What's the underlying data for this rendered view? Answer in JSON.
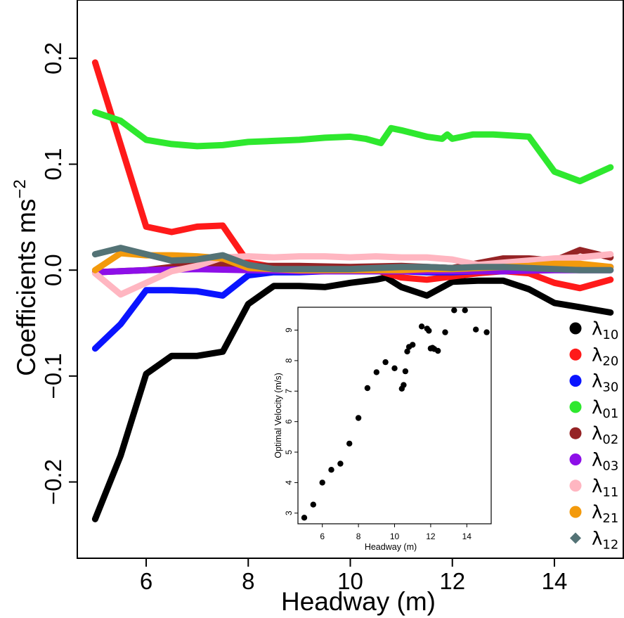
{
  "chart_data": [
    {
      "type": "line",
      "xlabel": "Headway (m)",
      "ylabel": "Coefficients ms",
      "ylabel_superscript": "−2",
      "xlim": [
        4.65,
        15.35
      ],
      "ylim": [
        -0.272,
        0.255
      ],
      "x_ticks": [
        6,
        8,
        10,
        12,
        14
      ],
      "y_ticks": [
        -0.2,
        -0.1,
        0.0,
        0.1,
        0.2
      ],
      "x_tick_labels": [
        "6",
        "8",
        "10",
        "12",
        "14"
      ],
      "y_tick_labels": [
        "−0.2",
        "−0.1",
        "0.0",
        "0.1",
        "0.2"
      ],
      "grid": false,
      "legend_position": "right",
      "series": [
        {
          "name": "λ",
          "sub": "10",
          "color": "#000000",
          "marker": "circle",
          "x": [
            5,
            5.5,
            6,
            6.5,
            7,
            7.5,
            8,
            8.5,
            9,
            9.5,
            10,
            10.5,
            10.7,
            11,
            11.5,
            12,
            12.5,
            13,
            13.5,
            14,
            14.5,
            15.1
          ],
          "y": [
            -0.235,
            -0.175,
            -0.098,
            -0.081,
            -0.081,
            -0.077,
            -0.032,
            -0.015,
            -0.015,
            -0.016,
            -0.012,
            -0.009,
            -0.007,
            -0.016,
            -0.024,
            -0.011,
            -0.01,
            -0.01,
            -0.018,
            -0.031,
            -0.035,
            -0.04
          ]
        },
        {
          "name": "λ",
          "sub": "20",
          "color": "#ff1a1a",
          "marker": "circle",
          "x": [
            5,
            6,
            6.5,
            7,
            7.5,
            8,
            8.5,
            9,
            9.5,
            10,
            10.5,
            11,
            11.5,
            12,
            12.5,
            13,
            13.5,
            14,
            14.5,
            15.1
          ],
          "y": [
            0.196,
            0.041,
            0.036,
            0.041,
            0.042,
            0.007,
            0.003,
            0.002,
            0.002,
            0.001,
            0.0,
            -0.007,
            -0.009,
            -0.006,
            -0.003,
            -0.001,
            -0.003,
            -0.012,
            -0.017,
            -0.009
          ]
        },
        {
          "name": "λ",
          "sub": "30",
          "color": "#0a14ff",
          "marker": "circle",
          "x": [
            5,
            5.5,
            6,
            6.5,
            7,
            7.5,
            8,
            8.5,
            9,
            9.5,
            10,
            10.5,
            11,
            11.5,
            12,
            12.5,
            13,
            13.5,
            14,
            14.5,
            15.1
          ],
          "y": [
            -0.074,
            -0.051,
            -0.019,
            -0.019,
            -0.02,
            -0.024,
            -0.005,
            -0.002,
            -0.002,
            -0.001,
            -0.001,
            -0.001,
            -0.001,
            -0.002,
            -0.002,
            -0.001,
            -0.001,
            0.0,
            0.001,
            0.002,
            0.003
          ]
        },
        {
          "name": "λ",
          "sub": "01",
          "color": "#2ee82e",
          "marker": "circle",
          "x": [
            5,
            5.5,
            6,
            6.5,
            7,
            7.5,
            8,
            8.5,
            9,
            9.5,
            10,
            10.3,
            10.6,
            10.8,
            11.0,
            11.5,
            11.8,
            11.9,
            12.0,
            12.2,
            12.4,
            12.8,
            13.5,
            14.0,
            14.5,
            15.1
          ],
          "y": [
            0.149,
            0.141,
            0.123,
            0.119,
            0.117,
            0.118,
            0.121,
            0.122,
            0.123,
            0.125,
            0.126,
            0.124,
            0.12,
            0.134,
            0.132,
            0.126,
            0.124,
            0.128,
            0.124,
            0.126,
            0.128,
            0.128,
            0.126,
            0.093,
            0.084,
            0.097
          ]
        },
        {
          "name": "λ",
          "sub": "02",
          "color": "#952325",
          "marker": "circle",
          "x": [
            5,
            6,
            7,
            8,
            9,
            10,
            11,
            12,
            13,
            13.5,
            14,
            14.5,
            15.1
          ],
          "y": [
            -0.002,
            0.0,
            0.006,
            0.004,
            0.004,
            0.003,
            0.004,
            0.002,
            0.011,
            0.011,
            0.009,
            0.019,
            0.012
          ]
        },
        {
          "name": "λ",
          "sub": "03",
          "color": "#8d0fe8",
          "marker": "circle",
          "x": [
            5,
            6,
            7,
            8,
            9,
            10,
            11,
            12,
            13,
            14,
            15.1
          ],
          "y": [
            -0.002,
            0.0,
            0.001,
            0.0,
            -0.001,
            -0.001,
            -0.001,
            -0.001,
            -0.001,
            0.0,
            0.0
          ]
        },
        {
          "name": "λ",
          "sub": "11",
          "color": "#ffb6c1",
          "marker": "circle",
          "x": [
            5,
            5.5,
            6,
            6.5,
            7,
            7.5,
            8,
            8.5,
            9,
            9.5,
            10,
            10.5,
            11,
            11.5,
            12,
            12.5,
            13,
            13.5,
            14,
            14.5,
            15.1
          ],
          "y": [
            -0.003,
            -0.023,
            -0.012,
            -0.001,
            0.004,
            0.012,
            0.013,
            0.012,
            0.013,
            0.013,
            0.012,
            0.013,
            0.012,
            0.012,
            0.01,
            0.005,
            0.007,
            0.009,
            0.011,
            0.012,
            0.015
          ]
        },
        {
          "name": "λ",
          "sub": "21",
          "color": "#f39a0c",
          "marker": "circle",
          "x": [
            5,
            5.5,
            6,
            6.5,
            7,
            7.5,
            8,
            8.5,
            9,
            9.5,
            10,
            10.5,
            11,
            11.5,
            12,
            12.5,
            13,
            13.5,
            14,
            14.5,
            15.1
          ],
          "y": [
            0.0,
            0.016,
            0.014,
            0.014,
            0.013,
            0.011,
            0.002,
            0.001,
            0.0,
            0.0,
            0.0,
            0.0,
            0.0,
            0.001,
            0.001,
            0.002,
            0.003,
            0.004,
            0.006,
            0.006,
            0.003
          ]
        },
        {
          "name": "λ",
          "sub": "12",
          "color": "#547376",
          "marker": "diamond",
          "x": [
            5,
            5.5,
            6,
            6.5,
            7,
            7.5,
            8,
            8.5,
            9,
            9.5,
            10,
            10.5,
            11,
            11.5,
            12,
            12.5,
            13,
            13.5,
            14,
            14.5,
            15.1
          ],
          "y": [
            0.015,
            0.021,
            0.015,
            0.009,
            0.01,
            0.014,
            0.005,
            0.001,
            0.001,
            0.001,
            0.001,
            0.002,
            0.003,
            0.003,
            0.002,
            0.003,
            0.003,
            0.002,
            0.001,
            0.0,
            0.0
          ]
        }
      ]
    },
    {
      "type": "scatter",
      "xlabel": "Headway (m)",
      "ylabel": "Optimal Velocity (m/s)",
      "xlim": [
        4.65,
        15.35
      ],
      "ylim": [
        2.65,
        9.75
      ],
      "x_ticks": [
        6,
        8,
        10,
        12,
        14
      ],
      "y_ticks": [
        3,
        4,
        5,
        6,
        7,
        8,
        9
      ],
      "x_tick_labels": [
        "6",
        "8",
        "10",
        "12",
        "14"
      ],
      "y_tick_labels": [
        "3",
        "4",
        "5",
        "6",
        "7",
        "8",
        "9"
      ],
      "series": [
        {
          "color": "#000000",
          "x": [
            5.0,
            5.5,
            6.0,
            6.5,
            7.0,
            7.5,
            8.0,
            8.5,
            9.0,
            9.5,
            10.0,
            10.4,
            10.5,
            10.6,
            10.7,
            10.8,
            11.0,
            11.5,
            11.8,
            11.9,
            12.0,
            12.1,
            12.2,
            12.4,
            12.8,
            13.3,
            13.9,
            14.5,
            15.1
          ],
          "y": [
            2.85,
            3.28,
            4.0,
            4.42,
            4.62,
            5.28,
            6.12,
            7.1,
            7.62,
            7.95,
            7.75,
            7.08,
            7.2,
            7.65,
            8.3,
            8.45,
            8.52,
            9.12,
            9.05,
            8.98,
            8.4,
            8.42,
            8.38,
            8.32,
            8.93,
            9.65,
            9.65,
            9.02,
            8.93
          ]
        }
      ]
    }
  ]
}
